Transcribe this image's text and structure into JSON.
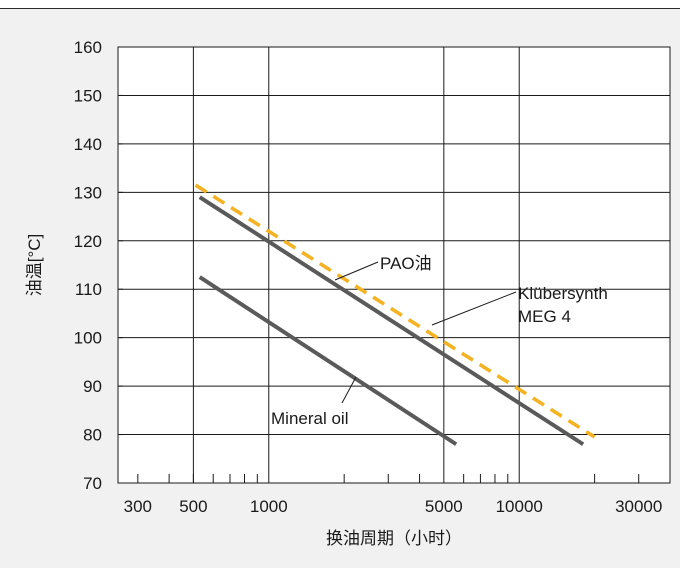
{
  "chart_data": {
    "type": "line",
    "title": "",
    "xlabel": "换油周期（小时）",
    "ylabel": "油温[°C]",
    "x_scale": "log",
    "xlim": [
      250,
      40000
    ],
    "ylim": [
      70,
      160
    ],
    "x_ticks": [
      300,
      500,
      1000,
      5000,
      10000,
      30000
    ],
    "x_tick_labels": [
      "300",
      "500",
      "1000",
      "5000",
      "10000",
      "30000"
    ],
    "y_ticks": [
      70,
      80,
      90,
      100,
      110,
      120,
      130,
      140,
      150,
      160
    ],
    "y_tick_labels": [
      "70",
      "80",
      "90",
      "100",
      "110",
      "120",
      "130",
      "140",
      "150",
      "160"
    ],
    "grid": true,
    "series": [
      {
        "name": "Mineral oil",
        "x": [
          530,
          5600
        ],
        "y": [
          112.5,
          78
        ],
        "color": "#5a5a5a",
        "dash": false
      },
      {
        "name": "PAO油",
        "x": [
          530,
          18000
        ],
        "y": [
          129,
          78
        ],
        "color": "#5a5a5a",
        "dash": false
      },
      {
        "name": "Klübersynth MEG 4",
        "x": [
          510,
          20000
        ],
        "y": [
          131.5,
          79.5
        ],
        "color": "#f5b324",
        "dash": true
      }
    ],
    "annotations": [
      {
        "series_index": 1,
        "lines": [
          "PAO油"
        ]
      },
      {
        "series_index": 2,
        "lines": [
          "Klübersynth",
          "MEG 4"
        ]
      },
      {
        "series_index": 0,
        "lines": [
          "Mineral oil"
        ]
      }
    ]
  }
}
